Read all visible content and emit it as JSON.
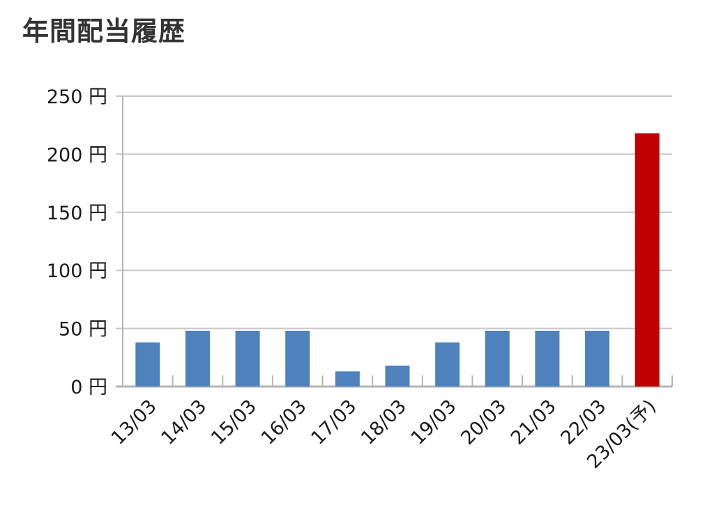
{
  "chart_data": {
    "type": "bar",
    "title": "年間配当履歴",
    "categories": [
      "13/03",
      "14/03",
      "15/03",
      "16/03",
      "17/03",
      "18/03",
      "19/03",
      "20/03",
      "21/03",
      "22/03",
      "23/03(予)"
    ],
    "values": [
      38,
      48,
      48,
      48,
      13,
      18,
      38,
      48,
      48,
      48,
      218
    ],
    "y_ticks": [
      "0 円",
      "50 円",
      "100 円",
      "150 円",
      "200 円",
      "250 円"
    ],
    "ylim": [
      0,
      250
    ],
    "xlabel": "",
    "ylabel": "",
    "grid": true,
    "colors": {
      "actual": "#4f81bd",
      "forecast": "#c00000",
      "grid": "#c8c8c8",
      "axis": "#b4b4b4"
    }
  }
}
